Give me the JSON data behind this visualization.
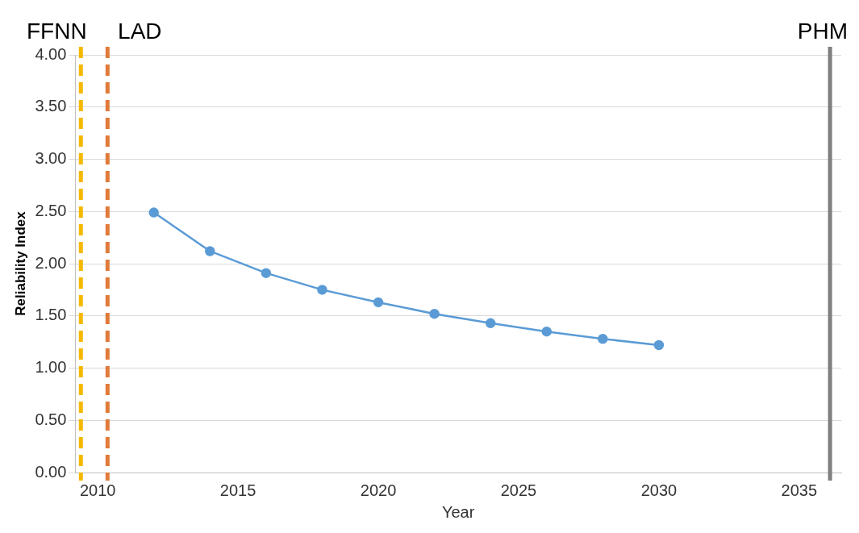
{
  "chart_data": {
    "type": "line",
    "xlabel": "Year",
    "ylabel": "Reliability Index",
    "x": [
      2012,
      2014,
      2016,
      2018,
      2020,
      2022,
      2024,
      2026,
      2028,
      2030
    ],
    "series": [
      {
        "color": "#5b9bd5",
        "values": [
          2.49,
          2.12,
          1.91,
          1.75,
          1.63,
          1.52,
          1.43,
          1.35,
          1.28,
          1.22
        ]
      }
    ],
    "xlim": [
      2009.2,
      2036.5
    ],
    "xticks": [
      2010,
      2015,
      2020,
      2025,
      2030,
      2035
    ],
    "ylim": [
      0,
      4
    ],
    "yticks": [
      {
        "value": 0,
        "label": "0.00"
      },
      {
        "value": 0.5,
        "label": "0.50"
      },
      {
        "value": 1,
        "label": "1.00"
      },
      {
        "value": 1.5,
        "label": "1.50"
      },
      {
        "value": 2,
        "label": "2.00"
      },
      {
        "value": 2.5,
        "label": "2.50"
      },
      {
        "value": 3,
        "label": "3.00"
      },
      {
        "value": 3.5,
        "label": "3.50"
      },
      {
        "value": 4,
        "label": "4.00"
      }
    ],
    "grid": "y",
    "marker": "circle",
    "line_style": "solid",
    "legend": false,
    "ref_lines": [
      {
        "axis": "x",
        "value": 2009.4,
        "label": "FFNN",
        "color": "#f5b800",
        "line_style": "dashed"
      },
      {
        "axis": "x",
        "value": 2010.35,
        "label": "LAD",
        "color": "#e07b39",
        "line_style": "dashed"
      },
      {
        "axis": "x",
        "value": 2036.1,
        "label": "PHM",
        "color": "#7f7f7f",
        "line_style": "solid"
      }
    ]
  }
}
